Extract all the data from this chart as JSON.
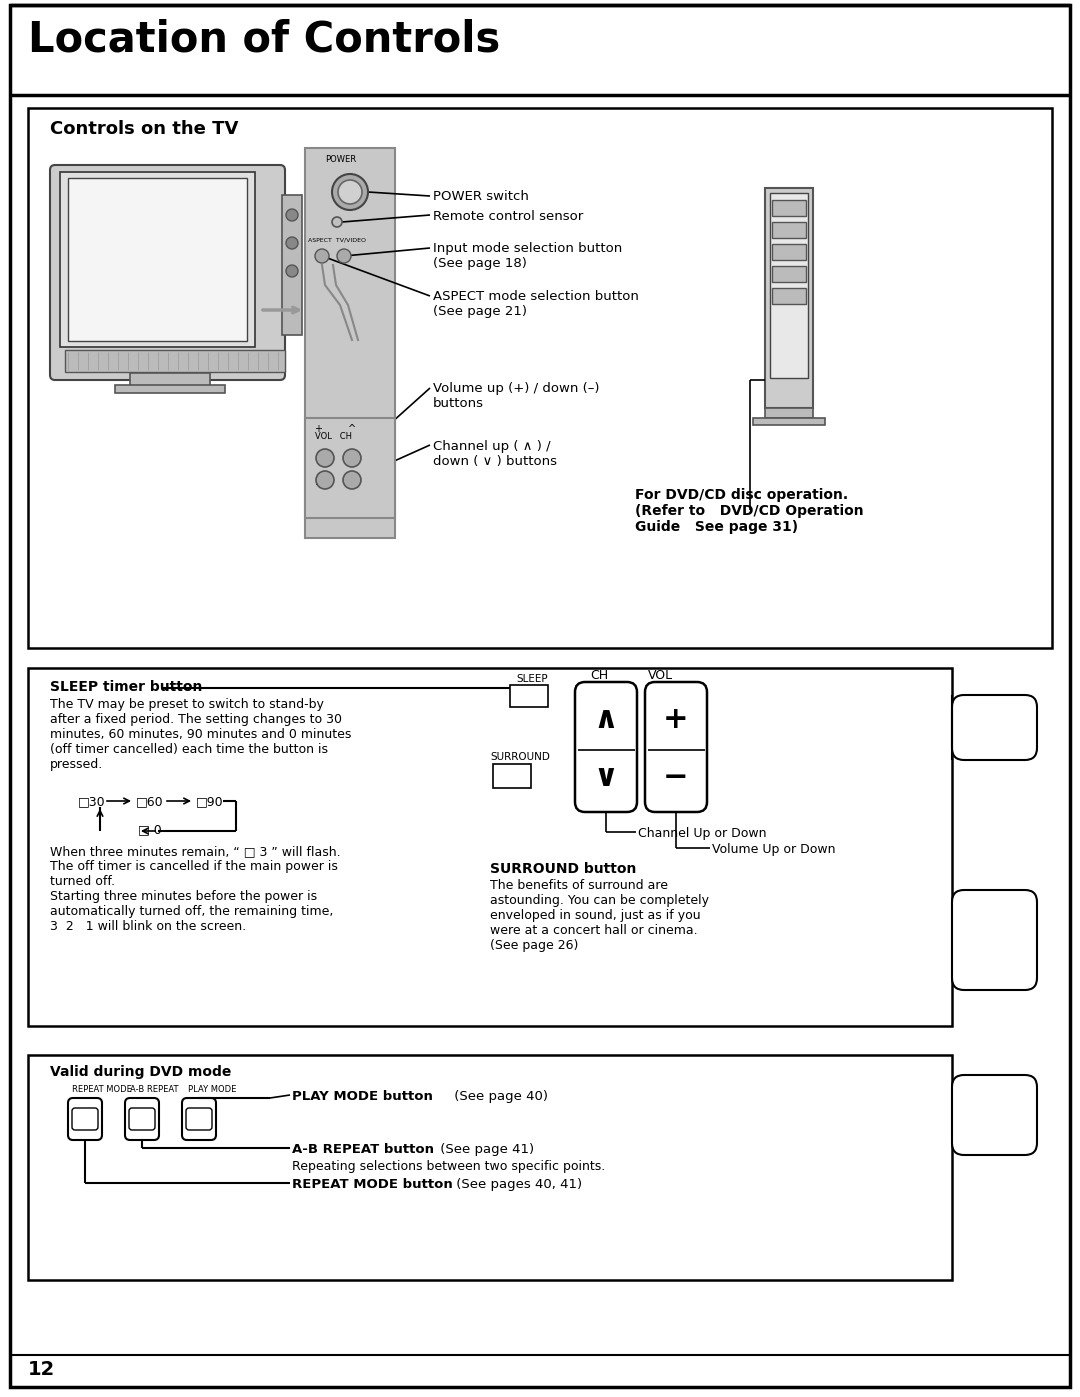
{
  "title": "Location of Controls",
  "subtitle": "Controls on the TV",
  "bg_color": "#ffffff",
  "border_color": "#000000",
  "page_number": "12",
  "power_switch_label": "POWER switch",
  "remote_sensor_label": "Remote control sensor",
  "input_mode_label": "Input mode selection button\n(See page 18)",
  "aspect_mode_label": "ASPECT mode selection button\n(See page 21)",
  "volume_label": "Volume up (+) / down (–)\nbuttons",
  "channel_label": "Channel up ( ∧ ) /\ndown ( ∨ ) buttons",
  "dvd_note": "For DVD/CD disc operation.\n(Refer to   DVD/CD Operation\nGuide   See page 31)",
  "sleep_title": "SLEEP timer button",
  "sleep_text": "The TV may be preset to switch to stand-by\nafter a fixed period. The setting changes to 30\nminutes, 60 minutes, 90 minutes and 0 minutes\n(off timer cancelled) each time the button is\npressed.",
  "sleep_text2": "When three minutes remain, “ □ 3 ” will flash.\nThe off timer is cancelled if the main power is\nturned off.\nStarting three minutes before the power is\nautomatically turned off, the remaining time,\n3  2   1 will blink on the screen.",
  "surround_title": "SURROUND button",
  "surround_text": "The benefits of surround are\nastounding. You can be completely\nenveloped in sound, just as if you\nwere at a concert hall or cinema.\n(See page 26)",
  "channel_up_down": "Channel Up or Down",
  "volume_up_down": "Volume Up or Down",
  "valid_dvd_title": "Valid during DVD mode",
  "play_mode_bold": "PLAY MODE button",
  "play_mode_rest": " (See page 40)",
  "ab_repeat_bold": "A-B REPEAT button",
  "ab_repeat_rest": " (See page 41)",
  "ab_repeat_sub": "Repeating selections between two specific points.",
  "repeat_mode_bold": "REPEAT MODE button",
  "repeat_mode_rest": " (See pages 40, 41)"
}
